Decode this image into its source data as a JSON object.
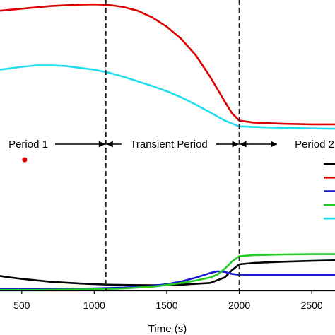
{
  "chart_data": {
    "type": "line",
    "xlabel": "Time (s)",
    "xlim": [
      350,
      2660
    ],
    "ylim": [
      0,
      1
    ],
    "x_ticks": [
      500,
      1000,
      1500,
      2000,
      2500
    ],
    "x_tick_labels": [
      "500",
      "1000",
      "1500",
      "2000",
      "2500"
    ],
    "period_markers": [
      1080,
      2000
    ],
    "period_labels": [
      "Period 1",
      "Transient Period",
      "Period 2"
    ],
    "series": [
      {
        "color": "#dd0000",
        "x": [
          350,
          500,
          700,
          900,
          1000,
          1100,
          1200,
          1300,
          1400,
          1500,
          1600,
          1700,
          1800,
          1900,
          1950,
          2000,
          2100,
          2300,
          2500,
          2660
        ],
        "y": [
          0.963,
          0.97,
          0.979,
          0.984,
          0.985,
          0.983,
          0.976,
          0.963,
          0.94,
          0.908,
          0.866,
          0.81,
          0.735,
          0.65,
          0.61,
          0.585,
          0.578,
          0.574,
          0.572,
          0.572
        ]
      },
      {
        "color": "#22ddee",
        "x": [
          350,
          500,
          600,
          700,
          800,
          1000,
          1100,
          1200,
          1400,
          1500,
          1600,
          1700,
          1800,
          1900,
          2000,
          2100,
          2300,
          2500,
          2660
        ],
        "y": [
          0.76,
          0.77,
          0.775,
          0.775,
          0.773,
          0.76,
          0.75,
          0.736,
          0.704,
          0.686,
          0.665,
          0.64,
          0.613,
          0.585,
          0.565,
          0.563,
          0.56,
          0.558,
          0.557
        ]
      },
      {
        "color": "#000000",
        "x": [
          350,
          400,
          500,
          700,
          900,
          1000,
          1100,
          1200,
          1400,
          1600,
          1800,
          1900,
          1950,
          2000,
          2100,
          2300,
          2500,
          2660
        ],
        "y": [
          0.05,
          0.046,
          0.04,
          0.03,
          0.024,
          0.022,
          0.02,
          0.019,
          0.018,
          0.02,
          0.026,
          0.045,
          0.07,
          0.09,
          0.095,
          0.099,
          0.102,
          0.104
        ]
      },
      {
        "color": "#1a1acc",
        "x": [
          350,
          600,
          800,
          1000,
          1200,
          1400,
          1500,
          1600,
          1700,
          1800,
          1850,
          1900,
          1950,
          2000,
          2200,
          2400,
          2660
        ],
        "y": [
          0.005,
          0.005,
          0.006,
          0.007,
          0.01,
          0.016,
          0.022,
          0.031,
          0.044,
          0.06,
          0.066,
          0.064,
          0.057,
          0.054,
          0.054,
          0.054,
          0.054
        ]
      },
      {
        "color": "#22cc22",
        "x": [
          350,
          600,
          800,
          1000,
          1200,
          1400,
          1500,
          1600,
          1700,
          1800,
          1850,
          1900,
          1950,
          2000,
          2100,
          2300,
          2500,
          2660
        ],
        "y": [
          0.002,
          0.002,
          0.003,
          0.004,
          0.007,
          0.013,
          0.019,
          0.026,
          0.034,
          0.045,
          0.055,
          0.075,
          0.1,
          0.118,
          0.122,
          0.124,
          0.125,
          0.125
        ]
      }
    ],
    "legend_swatches": [
      "#000000",
      "#dd0000",
      "#1a1acc",
      "#22cc22",
      "#22ddee"
    ],
    "stray_point": {
      "x": 520,
      "y": 0.45,
      "color": "#dd0000"
    }
  }
}
